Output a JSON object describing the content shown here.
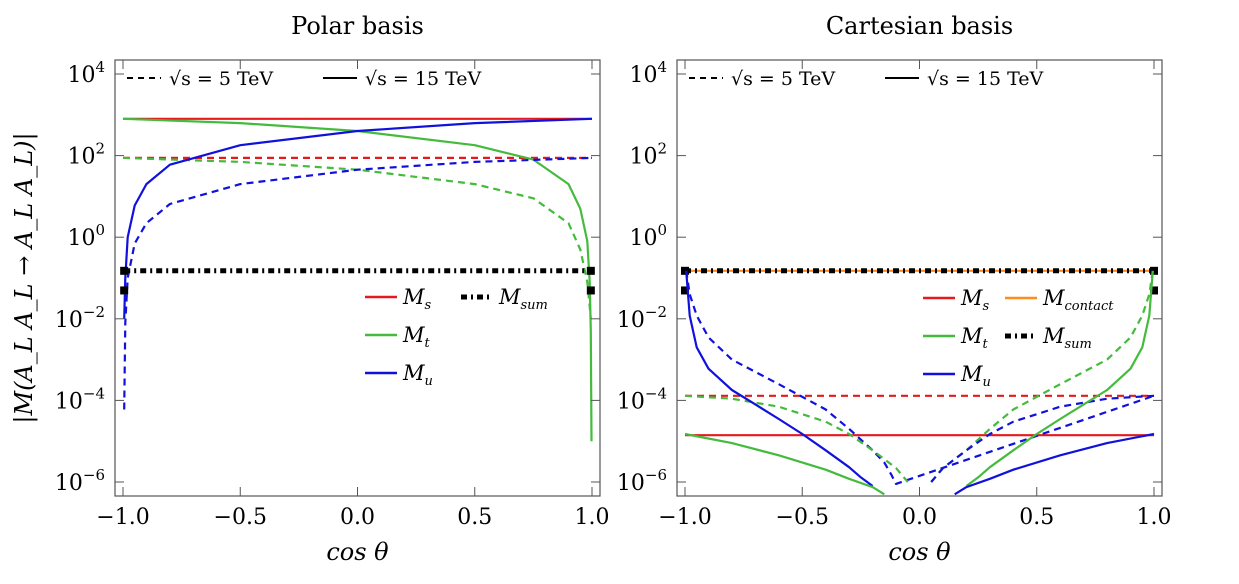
{
  "chart_data": [
    {
      "type": "line",
      "panel": "left",
      "title": "Polar basis",
      "xlabel": "cos θ",
      "ylabel": "|M(A_L A_L → A_L A_L)|",
      "xlim": [
        -1.0,
        1.0
      ],
      "ylim_log10": [
        -6,
        4
      ],
      "xticks": [
        "−1.0",
        "−0.5",
        "0.0",
        "0.5",
        "1.0"
      ],
      "yticks": [
        {
          "base": "10",
          "exp": "4",
          "log10": 4
        },
        {
          "base": "10",
          "exp": "2",
          "log10": 2
        },
        {
          "base": "10",
          "exp": "0",
          "log10": 0
        },
        {
          "base": "10",
          "exp": "−2",
          "log10": -2
        },
        {
          "base": "10",
          "exp": "−4",
          "log10": -4
        },
        {
          "base": "10",
          "exp": "−6",
          "log10": -6
        }
      ],
      "energy_legend": [
        {
          "style": "dashed",
          "label": "√s = 5 TeV"
        },
        {
          "style": "solid",
          "label": "√s = 15 TeV"
        }
      ],
      "legend": [
        {
          "key": "s",
          "label": "M",
          "sub": "s",
          "color": "#e41a1c"
        },
        {
          "key": "sum",
          "label": "M",
          "sub": "sum",
          "color": "#000000"
        },
        {
          "key": "t",
          "label": "M",
          "sub": "t",
          "color": "#44bb3c"
        },
        {
          "key": "u",
          "label": "M",
          "sub": "u",
          "color": "#1111dd"
        }
      ],
      "series": [
        {
          "name": "M_s, √s = 15 TeV",
          "color": "#e41a1c",
          "style": "solid",
          "x": [
            -1.0,
            1.0
          ],
          "y": [
            800,
            800
          ]
        },
        {
          "name": "M_s, √s = 5 TeV",
          "color": "#e41a1c",
          "style": "dashed",
          "x": [
            -1.0,
            1.0
          ],
          "y": [
            88,
            88
          ]
        },
        {
          "name": "M_t, √s = 15 TeV",
          "color": "#44bb3c",
          "style": "solid",
          "x": [
            -1.0,
            -0.5,
            0.0,
            0.5,
            0.75,
            0.9,
            0.95,
            0.98,
            0.99,
            0.995,
            0.998
          ],
          "y": [
            800,
            625,
            400,
            180,
            80,
            20,
            5,
            0.8,
            0.08,
            0.005,
            1e-05
          ]
        },
        {
          "name": "M_t, √s = 5 TeV",
          "color": "#44bb3c",
          "style": "dashed",
          "x": [
            -1.0,
            -0.5,
            0.0,
            0.5,
            0.75,
            0.9,
            0.95,
            0.98,
            0.99,
            0.995
          ],
          "y": [
            88,
            70,
            45,
            20,
            9,
            2.2,
            0.5,
            0.08,
            0.02,
            0.01
          ]
        },
        {
          "name": "M_u, √s = 15 TeV",
          "color": "#1111dd",
          "style": "solid",
          "x": [
            -0.995,
            -0.99,
            -0.98,
            -0.95,
            -0.9,
            -0.8,
            -0.5,
            0.0,
            0.5,
            1.0
          ],
          "y": [
            0.01,
            0.1,
            1,
            6,
            20,
            60,
            180,
            400,
            625,
            800
          ]
        },
        {
          "name": "M_u, √s = 5 TeV",
          "color": "#1111dd",
          "style": "dashed",
          "x": [
            -0.995,
            -0.99,
            -0.98,
            -0.95,
            -0.9,
            -0.8,
            -0.5,
            0.0,
            0.5,
            1.0
          ],
          "y": [
            6e-05,
            0.008,
            0.1,
            0.7,
            2.2,
            6.5,
            20,
            45,
            70,
            88
          ]
        },
        {
          "name": "M_sum",
          "color": "#000000",
          "style": "dashdot",
          "x": [
            -0.995,
            0.995
          ],
          "y": [
            0.15,
            0.15
          ]
        }
      ]
    },
    {
      "type": "line",
      "panel": "right",
      "title": "Cartesian basis",
      "xlabel": "cos θ",
      "xlim": [
        -1.0,
        1.0
      ],
      "ylim_log10": [
        -6,
        4
      ],
      "xticks": [
        "−1.0",
        "−0.5",
        "0.0",
        "0.5",
        "1.0"
      ],
      "yticks": [
        {
          "base": "10",
          "exp": "4",
          "log10": 4
        },
        {
          "base": "10",
          "exp": "2",
          "log10": 2
        },
        {
          "base": "10",
          "exp": "0",
          "log10": 0
        },
        {
          "base": "10",
          "exp": "−2",
          "log10": -2
        },
        {
          "base": "10",
          "exp": "−4",
          "log10": -4
        },
        {
          "base": "10",
          "exp": "−6",
          "log10": -6
        }
      ],
      "energy_legend": [
        {
          "style": "dashed",
          "label": "√s = 5 TeV"
        },
        {
          "style": "solid",
          "label": "√s = 15 TeV"
        }
      ],
      "legend": [
        {
          "key": "s",
          "label": "M",
          "sub": "s",
          "color": "#e41a1c"
        },
        {
          "key": "contact",
          "label": "M",
          "sub": "contact",
          "color": "#ff8c1a"
        },
        {
          "key": "t",
          "label": "M",
          "sub": "t",
          "color": "#44bb3c"
        },
        {
          "key": "sum",
          "label": "M",
          "sub": "sum",
          "color": "#000000"
        },
        {
          "key": "u",
          "label": "M",
          "sub": "u",
          "color": "#1111dd"
        }
      ],
      "series": [
        {
          "name": "M_s, √s = 5 TeV",
          "color": "#e41a1c",
          "style": "dashed",
          "x": [
            -1.0,
            1.0
          ],
          "y": [
            0.00013,
            0.00013
          ]
        },
        {
          "name": "M_s, √s = 15 TeV",
          "color": "#e41a1c",
          "style": "solid",
          "x": [
            -1.0,
            1.0
          ],
          "y": [
            1.4e-05,
            1.4e-05
          ]
        },
        {
          "name": "M_contact",
          "color": "#ff8c1a",
          "style": "solid",
          "x": [
            -1.0,
            1.0
          ],
          "y": [
            0.15,
            0.15
          ]
        },
        {
          "name": "M_sum",
          "color": "#000000",
          "style": "dashdot",
          "x": [
            -1.0,
            1.0
          ],
          "y": [
            0.15,
            0.15
          ]
        },
        {
          "name": "M_u, √s = 5 TeV",
          "color": "#1111dd",
          "style": "dashed",
          "x": [
            -0.995,
            -0.98,
            -0.95,
            -0.9,
            -0.8,
            -0.6,
            -0.4,
            -0.3,
            -0.2,
            -0.15,
            -0.12,
            -0.1,
            1.0
          ],
          "y": [
            0.15,
            0.04,
            0.012,
            0.0035,
            0.001,
            0.00025,
            6e-05,
            2e-05,
            6e-06,
            3e-06,
            1.5e-06,
            9e-07,
            0.00013
          ]
        },
        {
          "name": "M_t, √s = 5 TeV",
          "color": "#44bb3c",
          "style": "dashed",
          "x": [
            -1.0,
            -0.8,
            -0.6,
            -0.4,
            -0.3,
            -0.2,
            -0.1,
            -0.05
          ],
          "y": [
            0.00013,
            0.00011,
            7e-05,
            3e-05,
            1.5e-05,
            6e-06,
            2.2e-06,
            1e-06
          ]
        },
        {
          "name": "M_t, √s = 5 TeV (mirror)",
          "color": "#44bb3c",
          "style": "dashed",
          "x": [
            0.05,
            0.1,
            0.2,
            0.3,
            0.4,
            0.6,
            0.8,
            0.9,
            0.95,
            0.98,
            0.995
          ],
          "y": [
            1e-06,
            2.2e-06,
            6e-06,
            2e-05,
            6e-05,
            0.00025,
            0.001,
            0.0035,
            0.012,
            0.04,
            0.15
          ]
        },
        {
          "name": "M_u, √s = 5 TeV (right)",
          "color": "#1111dd",
          "style": "dashed",
          "x": [
            0.05,
            0.1,
            0.2,
            0.3,
            0.4,
            0.6,
            0.8,
            1.0
          ],
          "y": [
            1e-06,
            2.2e-06,
            6e-06,
            1.5e-05,
            3e-05,
            7e-05,
            0.00011,
            0.00013
          ]
        },
        {
          "name": "M_u, √s = 15 TeV",
          "color": "#1111dd",
          "style": "solid",
          "x": [
            -0.995,
            -0.98,
            -0.95,
            -0.9,
            -0.8,
            -0.7,
            -0.6,
            -0.5,
            -0.4,
            -0.3,
            -0.25,
            -0.2
          ],
          "y": [
            0.15,
            0.012,
            0.002,
            0.0006,
            0.00018,
            8e-05,
            3.5e-05,
            1.5e-05,
            6e-06,
            2.3e-06,
            1.3e-06,
            8e-07
          ]
        },
        {
          "name": "M_t, √s = 15 TeV",
          "color": "#44bb3c",
          "style": "solid",
          "x": [
            -1.0,
            -0.8,
            -0.6,
            -0.4,
            -0.3,
            -0.2,
            -0.15
          ],
          "y": [
            1.5e-05,
            9e-06,
            4.5e-06,
            2e-06,
            1.2e-06,
            7.5e-07,
            5e-07
          ]
        },
        {
          "name": "M_t, √s = 15 TeV (right)",
          "color": "#44bb3c",
          "style": "solid",
          "x": [
            0.2,
            0.25,
            0.3,
            0.4,
            0.5,
            0.6,
            0.7,
            0.8,
            0.9,
            0.95,
            0.98,
            0.995
          ],
          "y": [
            8e-07,
            1.3e-06,
            2.3e-06,
            6e-06,
            1.5e-05,
            3.5e-05,
            8e-05,
            0.00018,
            0.0006,
            0.002,
            0.012,
            0.15
          ]
        },
        {
          "name": "M_u, √s = 15 TeV (right)",
          "color": "#1111dd",
          "style": "solid",
          "x": [
            0.15,
            0.2,
            0.3,
            0.4,
            0.6,
            0.8,
            1.0
          ],
          "y": [
            5e-07,
            7.5e-07,
            1.2e-06,
            2e-06,
            4.5e-06,
            9e-06,
            1.5e-05
          ]
        }
      ]
    }
  ]
}
